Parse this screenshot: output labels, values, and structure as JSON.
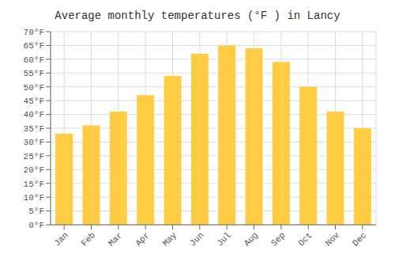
{
  "chart_data": {
    "type": "bar",
    "title": "Average monthly temperatures (°F ) in Lancy",
    "categories": [
      "Jan",
      "Feb",
      "Mar",
      "Apr",
      "May",
      "Jun",
      "Jul",
      "Aug",
      "Sep",
      "Oct",
      "Nov",
      "Dec"
    ],
    "values": [
      33,
      36,
      41,
      47,
      54,
      62,
      65,
      64,
      59,
      50,
      41,
      35
    ],
    "color": "#FFCC44",
    "ylim": [
      0,
      70
    ],
    "yticks": [
      {
        "value": 0,
        "label": "0°F"
      },
      {
        "value": 5,
        "label": "5°F"
      },
      {
        "value": 10,
        "label": "10°F"
      },
      {
        "value": 15,
        "label": "15°F"
      },
      {
        "value": 20,
        "label": "20°F"
      },
      {
        "value": 25,
        "label": "25°F"
      },
      {
        "value": 30,
        "label": "30°F"
      },
      {
        "value": 35,
        "label": "35°F"
      },
      {
        "value": 40,
        "label": "40°F"
      },
      {
        "value": 45,
        "label": "45°F"
      },
      {
        "value": 50,
        "label": "50°F"
      },
      {
        "value": 55,
        "label": "55°F"
      },
      {
        "value": 60,
        "label": "60°F"
      },
      {
        "value": 65,
        "label": "65°F"
      },
      {
        "value": 70,
        "label": "70°F"
      }
    ],
    "grid": true
  }
}
